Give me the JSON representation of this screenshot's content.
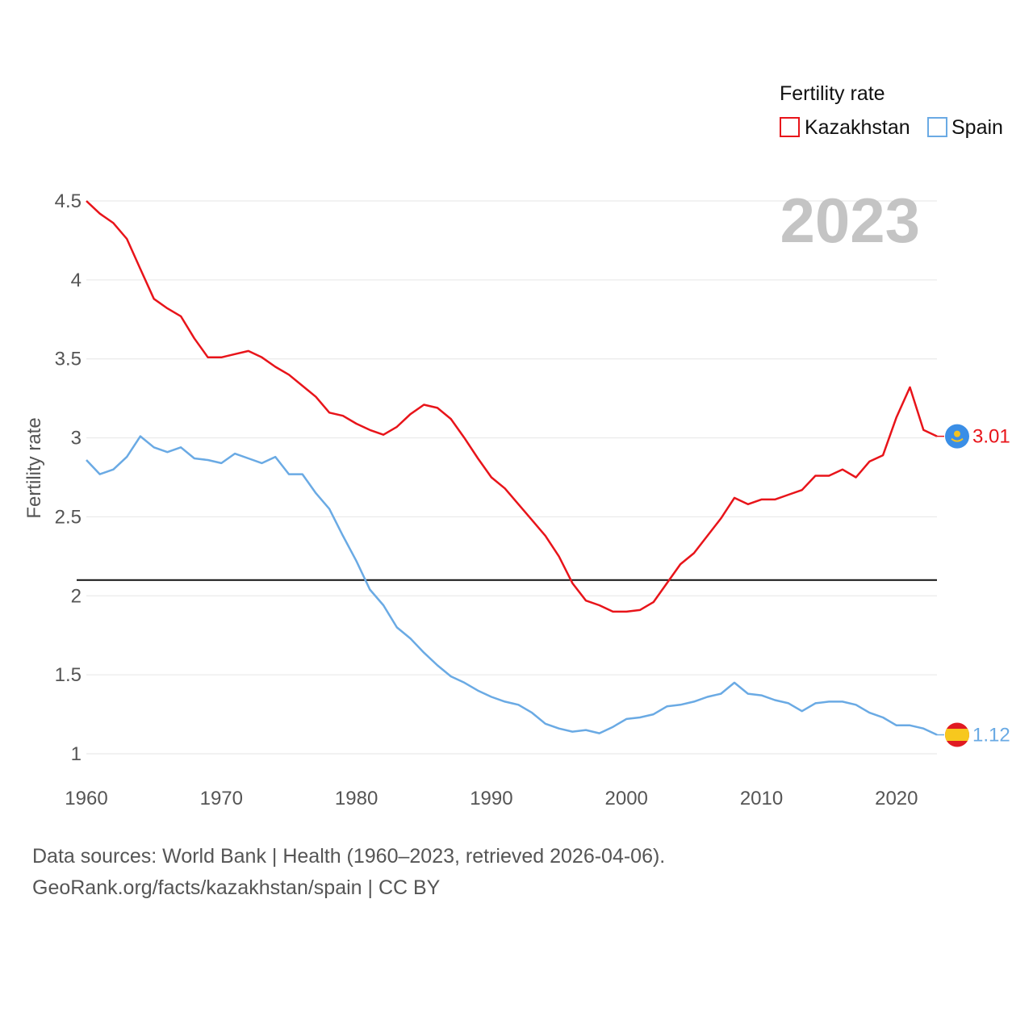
{
  "chart_data": {
    "type": "line",
    "title": "Fertility rate",
    "current_year": "2023",
    "xlabel": "",
    "ylabel": "Fertility rate",
    "xlim": [
      1960,
      2023
    ],
    "ylim": [
      1,
      4.5
    ],
    "x_ticks": [
      1960,
      1970,
      1980,
      1990,
      2000,
      2010,
      2020
    ],
    "y_ticks": [
      1,
      1.5,
      2,
      2.5,
      3,
      3.5,
      4,
      4.5
    ],
    "y_tick_labels": [
      "1",
      "1.5",
      "2",
      "2.5",
      "3",
      "3.5",
      "4",
      "4.5"
    ],
    "x_tick_labels": [
      "1960",
      "1970",
      "1980",
      "1990",
      "2000",
      "2010",
      "2020"
    ],
    "reference_line": {
      "y": 2.1,
      "color": "#111111"
    },
    "x": [
      1960,
      1961,
      1962,
      1963,
      1964,
      1965,
      1966,
      1967,
      1968,
      1969,
      1970,
      1971,
      1972,
      1973,
      1974,
      1975,
      1976,
      1977,
      1978,
      1979,
      1980,
      1981,
      1982,
      1983,
      1984,
      1985,
      1986,
      1987,
      1988,
      1989,
      1990,
      1991,
      1992,
      1993,
      1994,
      1995,
      1996,
      1997,
      1998,
      1999,
      2000,
      2001,
      2002,
      2003,
      2004,
      2005,
      2006,
      2007,
      2008,
      2009,
      2010,
      2011,
      2012,
      2013,
      2014,
      2015,
      2016,
      2017,
      2018,
      2019,
      2020,
      2021,
      2022,
      2023
    ],
    "series": [
      {
        "name": "Kazakhstan",
        "color": "#e8141a",
        "end_label": "3.01",
        "flag": "kazakhstan-flag",
        "values": [
          4.5,
          4.42,
          4.36,
          4.26,
          4.07,
          3.88,
          3.82,
          3.77,
          3.63,
          3.51,
          3.51,
          3.53,
          3.55,
          3.51,
          3.45,
          3.4,
          3.33,
          3.26,
          3.16,
          3.14,
          3.09,
          3.05,
          3.02,
          3.07,
          3.15,
          3.21,
          3.19,
          3.12,
          3.0,
          2.87,
          2.75,
          2.68,
          2.58,
          2.48,
          2.38,
          2.25,
          2.08,
          1.97,
          1.94,
          1.9,
          1.9,
          1.91,
          1.96,
          2.08,
          2.2,
          2.27,
          2.38,
          2.49,
          2.62,
          2.58,
          2.61,
          2.61,
          2.64,
          2.67,
          2.76,
          2.76,
          2.8,
          2.75,
          2.85,
          2.89,
          3.13,
          3.32,
          3.05,
          3.01
        ]
      },
      {
        "name": "Spain",
        "color": "#6aaae4",
        "end_label": "1.12",
        "flag": "spain-flag",
        "values": [
          2.86,
          2.77,
          2.8,
          2.88,
          3.01,
          2.94,
          2.91,
          2.94,
          2.87,
          2.86,
          2.84,
          2.9,
          2.87,
          2.84,
          2.88,
          2.77,
          2.77,
          2.65,
          2.55,
          2.38,
          2.22,
          2.04,
          1.94,
          1.8,
          1.73,
          1.64,
          1.56,
          1.49,
          1.45,
          1.4,
          1.36,
          1.33,
          1.31,
          1.26,
          1.19,
          1.16,
          1.14,
          1.15,
          1.13,
          1.17,
          1.22,
          1.23,
          1.25,
          1.3,
          1.31,
          1.33,
          1.36,
          1.38,
          1.45,
          1.38,
          1.37,
          1.34,
          1.32,
          1.27,
          1.32,
          1.33,
          1.33,
          1.31,
          1.26,
          1.23,
          1.18,
          1.18,
          1.16,
          1.12
        ]
      }
    ]
  },
  "legend": {
    "title": "Fertility rate",
    "items": [
      {
        "label": "Kazakhstan",
        "color": "#e8141a"
      },
      {
        "label": "Spain",
        "color": "#6aaae4"
      }
    ]
  },
  "footer": {
    "source_line": "Data sources: World Bank | Health (1960–2023, retrieved 2026-04-06).",
    "attribution_line": "GeoRank.org/facts/kazakhstan/spain | CC BY"
  }
}
